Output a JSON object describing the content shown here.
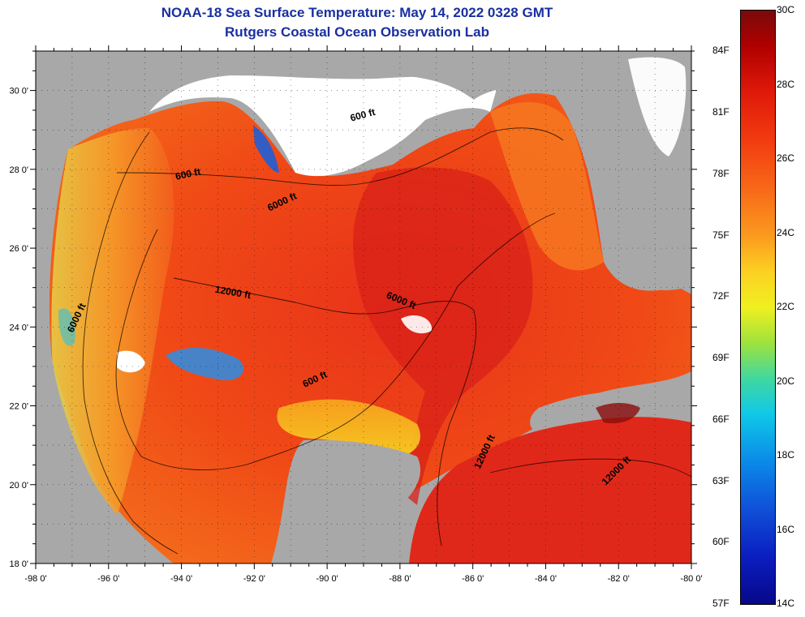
{
  "title": {
    "line1": "NOAA-18 Sea Surface Temperature:  May 14, 2022 0328 GMT",
    "line2": "Rutgers Coastal Ocean Observation Lab"
  },
  "map": {
    "region": "Gulf of Mexico",
    "lon_range": [
      -98,
      -80
    ],
    "lat_range": [
      18,
      31
    ],
    "x_ticks": [
      {
        "value": -98,
        "label": "-98 0'"
      },
      {
        "value": -96,
        "label": "-96 0'"
      },
      {
        "value": -94,
        "label": "-94 0'"
      },
      {
        "value": -92,
        "label": "-92 0'"
      },
      {
        "value": -90,
        "label": "-90 0'"
      },
      {
        "value": -88,
        "label": "-88 0'"
      },
      {
        "value": -86,
        "label": "-86 0'"
      },
      {
        "value": -84,
        "label": "-84 0'"
      },
      {
        "value": -82,
        "label": "-82 0'"
      },
      {
        "value": -80,
        "label": "-80 0'"
      }
    ],
    "y_ticks": [
      {
        "value": 30,
        "label": "30 0'"
      },
      {
        "value": 28,
        "label": "28 0'"
      },
      {
        "value": 26,
        "label": "26 0'"
      },
      {
        "value": 24,
        "label": "24 0'"
      },
      {
        "value": 22,
        "label": "22 0'"
      },
      {
        "value": 20,
        "label": "20 0'"
      },
      {
        "value": 18,
        "label": "18 0'"
      }
    ],
    "contour_labels": [
      {
        "text": "600 ft",
        "lon": -93.8,
        "lat": 27.8,
        "angle": -12
      },
      {
        "text": "600 ft",
        "lon": -89.0,
        "lat": 29.3,
        "angle": -15
      },
      {
        "text": "600 ft",
        "lon": -90.3,
        "lat": 22.6,
        "angle": -25
      },
      {
        "text": "6000 ft",
        "lon": -91.2,
        "lat": 27.1,
        "angle": -25
      },
      {
        "text": "6000 ft",
        "lon": -88.0,
        "lat": 24.6,
        "angle": 22
      },
      {
        "text": "6000 ft",
        "lon": -96.8,
        "lat": 24.2,
        "angle": -65
      },
      {
        "text": "12000 ft",
        "lon": -92.6,
        "lat": 24.8,
        "angle": 10
      },
      {
        "text": "12000 ft",
        "lon": -85.6,
        "lat": 20.8,
        "angle": -65
      },
      {
        "text": "12000 ft",
        "lon": -82.0,
        "lat": 20.3,
        "angle": -45
      }
    ],
    "colors": {
      "land": "#a8a8a8",
      "cloud": "#ffffff",
      "warm": "#f03a14",
      "hot": "#c81818",
      "mid": "#f77b1e",
      "cool": "#f6c02a",
      "cold": "#2a6ee0"
    }
  },
  "colorbar": {
    "fahrenheit": [
      "84F",
      "81F",
      "78F",
      "75F",
      "72F",
      "69F",
      "66F",
      "63F",
      "60F",
      "57F"
    ],
    "celsius": [
      "30C",
      "28C",
      "26C",
      "24C",
      "22C",
      "20C",
      "18C",
      "16C",
      "14C"
    ],
    "f_range": [
      57,
      86
    ],
    "c_range": [
      14,
      30
    ]
  }
}
